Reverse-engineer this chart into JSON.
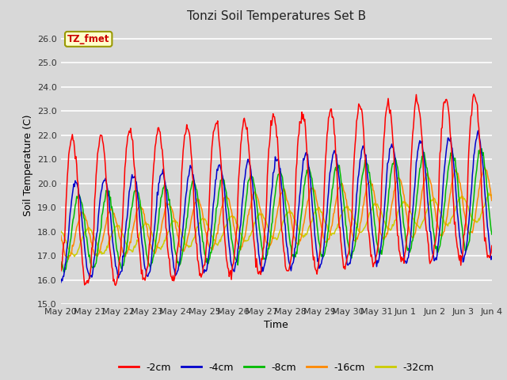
{
  "title": "Tonzi Soil Temperatures Set B",
  "xlabel": "Time",
  "ylabel": "Soil Temperature (C)",
  "ylim": [
    15.0,
    26.5
  ],
  "yticks": [
    15.0,
    16.0,
    17.0,
    18.0,
    19.0,
    20.0,
    21.0,
    22.0,
    23.0,
    24.0,
    25.0,
    26.0
  ],
  "bg_color": "#d8d8d8",
  "plot_bg_color": "#d8d8d8",
  "grid_color": "#ffffff",
  "line_colors": {
    "-2cm": "#ff0000",
    "-4cm": "#0000cc",
    "-8cm": "#00bb00",
    "-16cm": "#ff8800",
    "-32cm": "#cccc00"
  },
  "annotation_text": "TZ_fmet",
  "annotation_color": "#cc0000",
  "annotation_bg": "#ffffcc",
  "annotation_edge": "#999900",
  "x_tick_labels": [
    "May 20",
    "May 21",
    "May 22",
    "May 23",
    "May 24",
    "May 25",
    "May 26",
    "May 27",
    "May 28",
    "May 29",
    "May 30",
    "May 31",
    "Jun 1",
    "Jun 2",
    "Jun 3",
    "Jun 4"
  ],
  "series_names": [
    "-2cm",
    "-4cm",
    "-8cm",
    "-16cm",
    "-32cm"
  ]
}
